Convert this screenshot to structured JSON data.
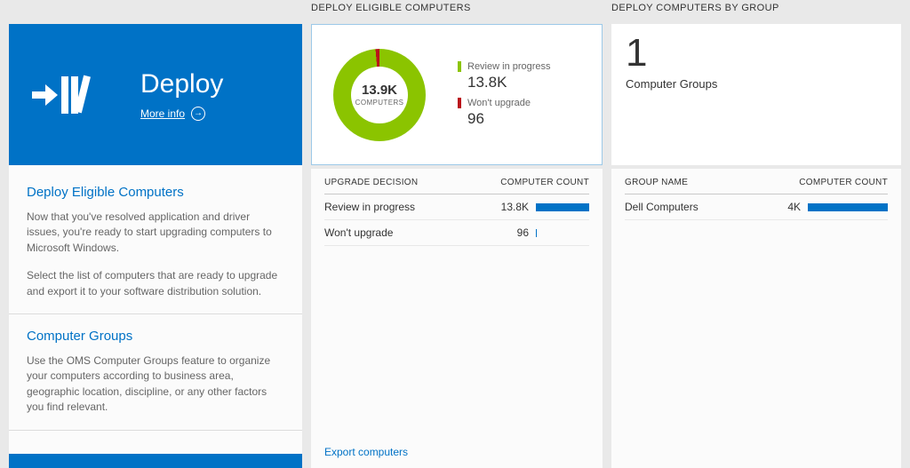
{
  "colors": {
    "accent_blue": "#0072c6",
    "donut_green": "#8bc400",
    "donut_red": "#ba141a",
    "count_bar_blue": "#0072c6",
    "background": "#e9e9e9"
  },
  "left_panel": {
    "tile": {
      "title": "Deploy",
      "more_info": "More info"
    },
    "sections": [
      {
        "heading": "Deploy Eligible Computers",
        "paragraphs": [
          "Now that you've resolved application and driver issues, you're ready to start upgrading computers to Microsoft Windows.",
          "Select the list of computers that are ready to upgrade and export it to your software distribution solution."
        ]
      },
      {
        "heading": "Computer Groups",
        "paragraphs": [
          "Use the OMS Computer Groups feature to organize your computers according to business area, geographic location, discipline, or any other factors you find relevant."
        ]
      }
    ]
  },
  "middle_panel": {
    "title": "DEPLOY ELIGIBLE COMPUTERS",
    "table": {
      "headers": [
        "UPGRADE DECISION",
        "COMPUTER COUNT"
      ],
      "rows": [
        {
          "label": "Review in progress",
          "count": "13.8K",
          "value": 13800
        },
        {
          "label": "Won't upgrade",
          "count": "96",
          "value": 96
        }
      ]
    },
    "export_link": "Export computers"
  },
  "right_panel": {
    "title": "DEPLOY COMPUTERS BY GROUP",
    "summary": {
      "number": "1",
      "label": "Computer Groups"
    },
    "table": {
      "headers": [
        "GROUP NAME",
        "COMPUTER COUNT"
      ],
      "rows": [
        {
          "label": "Dell Computers",
          "count": "4K",
          "value": 4000
        }
      ]
    }
  },
  "chart_data": [
    {
      "type": "pie",
      "title": "Deploy Eligible Computers",
      "center_value": "13.9K",
      "center_label": "COMPUTERS",
      "total": 13896,
      "legend_position": "right",
      "series": [
        {
          "name": "Review in progress",
          "value": 13800,
          "display": "13.8K",
          "color": "#8bc400"
        },
        {
          "name": "Won't upgrade",
          "value": 96,
          "display": "96",
          "color": "#ba141a"
        }
      ]
    },
    {
      "type": "table",
      "columns": [
        "UPGRADE DECISION",
        "COMPUTER COUNT"
      ],
      "rows": [
        [
          "Review in progress",
          13800,
          "13.8K"
        ],
        [
          "Won't upgrade",
          96,
          "96"
        ]
      ]
    },
    {
      "type": "table",
      "columns": [
        "GROUP NAME",
        "COMPUTER COUNT"
      ],
      "rows": [
        [
          "Dell Computers",
          4000,
          "4K"
        ]
      ]
    }
  ]
}
